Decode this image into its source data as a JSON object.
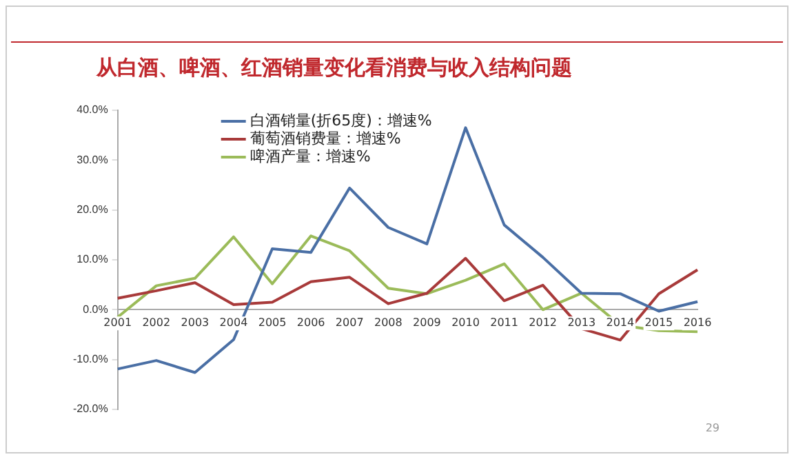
{
  "chart_data": {
    "type": "line",
    "title": "从白酒、啤酒、红酒销量变化看消费与收入结构问题",
    "categories": [
      "2001",
      "2002",
      "2003",
      "2004",
      "2005",
      "2006",
      "2007",
      "2008",
      "2009",
      "2010",
      "2011",
      "2012",
      "2013",
      "2014",
      "2015",
      "2016"
    ],
    "series": [
      {
        "name": "白酒销量(折65度)：增速%",
        "color": "#4a6fa5",
        "values": [
          -11.9,
          -10.2,
          -12.6,
          -6.0,
          12.2,
          11.5,
          24.4,
          16.5,
          13.2,
          36.5,
          17.0,
          10.5,
          3.3,
          3.2,
          -0.3,
          1.6
        ]
      },
      {
        "name": "葡萄酒销费量：增速%",
        "color": "#a83a3a",
        "values": [
          2.3,
          3.8,
          5.4,
          1.0,
          1.5,
          5.6,
          6.5,
          1.2,
          3.3,
          10.3,
          1.8,
          4.9,
          -3.8,
          -6.1,
          3.2,
          8.0
        ]
      },
      {
        "name": "啤酒产量：增速%",
        "color": "#9bbb59",
        "values": [
          -1.5,
          4.8,
          6.3,
          14.6,
          5.2,
          14.8,
          11.8,
          4.3,
          3.2,
          5.9,
          9.2,
          0.0,
          3.3,
          -3.1,
          -4.2,
          -4.4
        ]
      }
    ],
    "ylim": [
      -20,
      40
    ],
    "yticks": [
      {
        "value": -20,
        "label": "-20.0%"
      },
      {
        "value": -10,
        "label": "-10.0%"
      },
      {
        "value": 0,
        "label": "0.0%"
      },
      {
        "value": 10,
        "label": "10.0%"
      },
      {
        "value": 20,
        "label": "20.0%"
      },
      {
        "value": 30,
        "label": "30.0%"
      },
      {
        "value": 40,
        "label": "40.0%"
      }
    ],
    "grid": false,
    "legend": "top left",
    "marker": "none",
    "line_style": "solid",
    "annotations": [
      "29"
    ]
  }
}
